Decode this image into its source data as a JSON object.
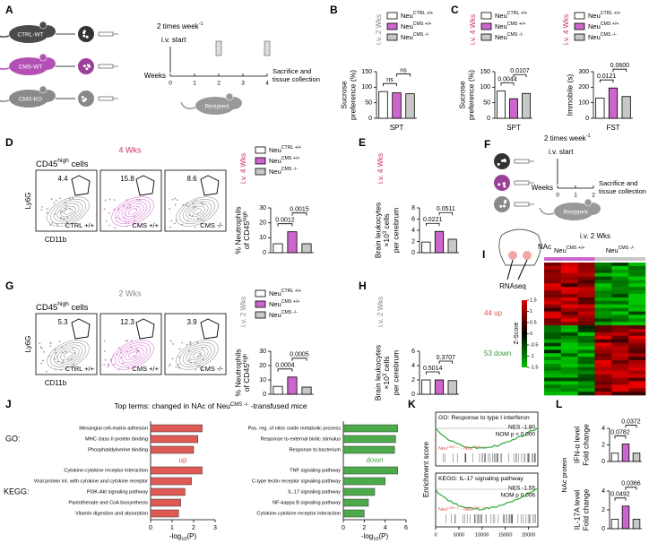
{
  "groups": [
    {
      "text": "Neu",
      "sup": "CTRL +/+",
      "color": "#ffffff"
    },
    {
      "text": "Neu",
      "sup": "CMS +/+",
      "color": "#cc66cc"
    },
    {
      "text": "Neu",
      "sup": "CMS -/-",
      "color": "#c8c8c8"
    }
  ],
  "A": {
    "letter": "A",
    "donors": [
      "CTRL-WT",
      "CMS-WT",
      "CMS-KO"
    ],
    "schedule": [
      "2 times week",
      {
        "sup": "-1"
      }
    ],
    "start": "i.v. start",
    "axis_label": "Weeks",
    "weeks": [
      0,
      1,
      2,
      3,
      4
    ],
    "end": [
      "Sacrifice and",
      "tissue collection"
    ],
    "recipient": "Recipient"
  },
  "B": {
    "letter": "B",
    "tag": "i.v. 2 Wks",
    "tag_color": "#888888",
    "chart": {
      "ylabel": [
        "Sucrose",
        "preference (%)"
      ],
      "xlabel": "SPT",
      "ylim": [
        0,
        150
      ],
      "yticks": [
        0,
        50,
        100,
        150
      ],
      "values": [
        86,
        82,
        79
      ],
      "comparisons": [
        "ns",
        "ns"
      ]
    }
  },
  "C": {
    "letter": "C",
    "tag": "i.v. 4 Wks",
    "tag_color": "#cc3366",
    "charts": [
      {
        "ylabel": [
          "Sucrose",
          "preference (%)"
        ],
        "xlabel": "SPT",
        "ylim": [
          0,
          150
        ],
        "yticks": [
          0,
          50,
          100,
          150
        ],
        "values": [
          88,
          63,
          80
        ],
        "comparisons": [
          "0.0044",
          "0.0107"
        ]
      },
      {
        "ylabel": [
          "Immobile (s)"
        ],
        "xlabel": "FST",
        "ylim": [
          0,
          300
        ],
        "yticks": [
          0,
          100,
          200,
          300
        ],
        "values": [
          130,
          195,
          140
        ],
        "comparisons": [
          "0.0121",
          "0.0600"
        ]
      }
    ]
  },
  "D": {
    "letter": "D",
    "heading": "4 Wks",
    "heading_color": "#cc3366",
    "gate_title": [
      "CD45",
      {
        "sup": "high"
      },
      " cells"
    ],
    "flow": [
      {
        "percent": 4.4,
        "label": "CTRL +/+"
      },
      {
        "percent": 15.8,
        "label": "CMS +/+"
      },
      {
        "percent": 8.6,
        "label": "CMS -/-"
      }
    ],
    "yaxis": "Ly6G",
    "xaxis": "CD11b",
    "tag": "i.v. 4 Wks",
    "tag_color": "#cc3366",
    "chart": {
      "ylabel": [
        "% Neutrophils",
        [
          "of CD45",
          {
            "sup": "high"
          }
        ]
      ],
      "ylim": [
        0,
        30
      ],
      "yticks": [
        0,
        10,
        20,
        30
      ],
      "values": [
        6,
        14,
        6
      ],
      "comparisons": [
        "0.0012",
        "0.0015"
      ]
    }
  },
  "E": {
    "letter": "E",
    "tag": "i.v. 4 Wks",
    "tag_color": "#cc3366",
    "chart": {
      "ylabel": [
        "Brain leukocytes",
        [
          "×10",
          {
            "sup": "3"
          },
          " cells"
        ],
        "per cerebrum"
      ],
      "ylim": [
        0,
        8
      ],
      "yticks": [
        0,
        2,
        4,
        6,
        8
      ],
      "values": [
        1.9,
        3.8,
        2.4
      ],
      "comparisons": [
        "0.0221",
        "0.0511"
      ]
    }
  },
  "F": {
    "letter": "F",
    "schedule": [
      "2 times week",
      {
        "sup": "-1"
      }
    ],
    "start": "i.v. start",
    "axis_label": "Weeks",
    "weeks": [
      0,
      1,
      2
    ],
    "end": [
      "Sacrifice and",
      "tissue collection"
    ],
    "recipient": "Recipient"
  },
  "G": {
    "letter": "G",
    "heading": "2 Wks",
    "heading_color": "#888888",
    "gate_title": [
      "CD45",
      {
        "sup": "high"
      },
      " cells"
    ],
    "flow": [
      {
        "percent": 5.3,
        "label": "CTRL +/+"
      },
      {
        "percent": 12.3,
        "label": "CMS +/+"
      },
      {
        "percent": 3.9,
        "label": "CMS -/-"
      }
    ],
    "yaxis": "Ly6G",
    "xaxis": "CD11b",
    "tag": "i.v. 2 Wks",
    "tag_color": "#888888",
    "chart": {
      "ylabel": [
        "% Neutrophils",
        [
          "of CD45",
          {
            "sup": "high"
          }
        ]
      ],
      "ylim": [
        0,
        30
      ],
      "yticks": [
        0,
        10,
        20,
        30
      ],
      "values": [
        5.5,
        12,
        5
      ],
      "comparisons": [
        "0.0004",
        "0.0005"
      ]
    }
  },
  "H": {
    "letter": "H",
    "tag": "i.v. 2 Wks",
    "tag_color": "#888888",
    "chart": {
      "ylabel": [
        "Brain leukocytes",
        [
          "×10",
          {
            "sup": "3"
          },
          " cells"
        ],
        "per cerebrum"
      ],
      "ylim": [
        0,
        6
      ],
      "yticks": [
        0,
        2,
        4,
        6
      ],
      "values": [
        2.0,
        2.0,
        1.9
      ],
      "comparisons": [
        "0.5014",
        "0.3707"
      ]
    }
  },
  "I": {
    "letter": "I",
    "region": "NAc",
    "method": "RNAseq",
    "up": "44 up",
    "up_color": "#d9534f",
    "down": "53 down",
    "down_color": "#3a9a3a",
    "zlabel": "Z-Score",
    "zlim": [
      -1.5,
      1.5
    ],
    "zticks": [
      1.5,
      1,
      0.5,
      0,
      -0.5,
      -1,
      -1.5
    ],
    "tag": "i.v. 2 Wks",
    "groups": [
      [
        "Neu",
        {
          "sup": "CMS +/+"
        }
      ],
      [
        "Neu",
        {
          "sup": "CMS -/-"
        }
      ]
    ]
  },
  "J": {
    "letter": "J",
    "title": [
      "Top terms: changed in NAc of Neu",
      {
        "sup": "CMS -/-"
      },
      " -transfused mice"
    ],
    "go_label": "GO:",
    "kegg_label": "KEGG:",
    "xlabel": [
      "-log",
      {
        "sub": "10"
      },
      "(P)"
    ],
    "up": {
      "label": "up",
      "color": "#e05a55",
      "xlim": [
        0,
        3
      ],
      "xticks": [
        0,
        1,
        2,
        3
      ],
      "go": {
        "terms": [
          "Mesangial cell-matrix adhesion",
          "MHC class II protein binding",
          "Phosphatidylserine binding"
        ],
        "values": [
          2.4,
          2.2,
          2.0
        ]
      },
      "kegg": {
        "terms": [
          "Cytokine-cytokine receptor interaction",
          "Viral protein int. with cytokine and cytokine receptor",
          "PI3K-Akt signaling pathway",
          "Pantothenate and CoA biosynthesis",
          "Vitamin digestion and absorption"
        ],
        "values": [
          2.4,
          1.9,
          1.6,
          1.4,
          1.3
        ]
      }
    },
    "down": {
      "label": "down",
      "color": "#4caa4a",
      "xlim": [
        0,
        6
      ],
      "xticks": [
        0,
        2,
        4,
        6
      ],
      "go": {
        "terms": [
          "Pos. reg. of nitric oxide metabolic process",
          "Response to external biotic stimulus",
          "Response to bacterium"
        ],
        "values": [
          5.2,
          5.0,
          4.9
        ]
      },
      "kegg": {
        "terms": [
          "TNF signaling pathway",
          "C-type lectin receptor signaling pathway",
          "IL-17 signaling pathway",
          "NF-kappa B signaling pathway",
          "Cytokine-cytokine receptor interaction"
        ],
        "values": [
          5.2,
          4.0,
          3.0,
          2.4,
          2.0
        ]
      }
    }
  },
  "K": {
    "letter": "K",
    "ylabel": "Enrichment score",
    "xlim": [
      0,
      22000
    ],
    "xticks": [
      0,
      5000,
      10000,
      15000,
      20000
    ],
    "plots": [
      {
        "title": "GO: Response to type I interferon",
        "nes": "NES -1.80",
        "p": "NOM p < 0.000",
        "legend": [
          "Neu",
          {
            "sup": "CMS -/-"
          },
          " - Neu",
          {
            "sup": "CMS +/+"
          }
        ]
      },
      {
        "title": "KEGG: IL-17 signaling pathway",
        "nes": "NES -1.55",
        "p": "NOM p 0.006",
        "legend": [
          "Neu",
          {
            "sup": "CMS -/-"
          },
          " - Neu",
          {
            "sup": "CMS +/+"
          }
        ]
      }
    ]
  },
  "L": {
    "letter": "L",
    "side_label": "NAc protein",
    "charts": [
      {
        "ylabel": [
          "IFN-α level",
          "Fold change"
        ],
        "ylim": [
          0,
          4
        ],
        "yticks": [
          0,
          2,
          4
        ],
        "values": [
          1.0,
          2.1,
          1.0
        ],
        "comparisons": [
          "0.0782",
          "0.0372"
        ]
      },
      {
        "ylabel": [
          "IL-17A level",
          "Fold change"
        ],
        "ylim": [
          0,
          4
        ],
        "yticks": [
          0,
          2,
          4
        ],
        "values": [
          1.0,
          2.4,
          1.0
        ],
        "comparisons": [
          "0.0492",
          "0.0366"
        ]
      }
    ]
  }
}
